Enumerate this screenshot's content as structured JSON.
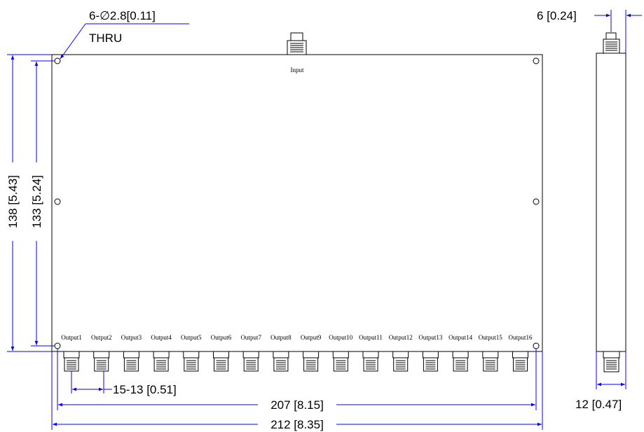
{
  "callout": {
    "holes": "6-∅2.8[0.11]",
    "thru": "THRU"
  },
  "ports": {
    "input": "Input",
    "outputs": [
      "Output1",
      "Output2",
      "Output3",
      "Output4",
      "Output5",
      "Output6",
      "Output7",
      "Output8",
      "Output9",
      "Output10",
      "Output11",
      "Output12",
      "Output13",
      "Output14",
      "Output15",
      "Output16"
    ]
  },
  "dimensions": {
    "height_outer": "138 [5.43]",
    "height_holes": "133 [5.24]",
    "width_holes": "207 [8.15]",
    "width_outer": "212 [8.35]",
    "port_pitch": "15-13 [0.51]",
    "side_connector_offset": "6 [0.24]",
    "side_thickness": "12 [0.47]"
  },
  "colors": {
    "outline": "#000000",
    "dimension_line": "#0000ff"
  }
}
